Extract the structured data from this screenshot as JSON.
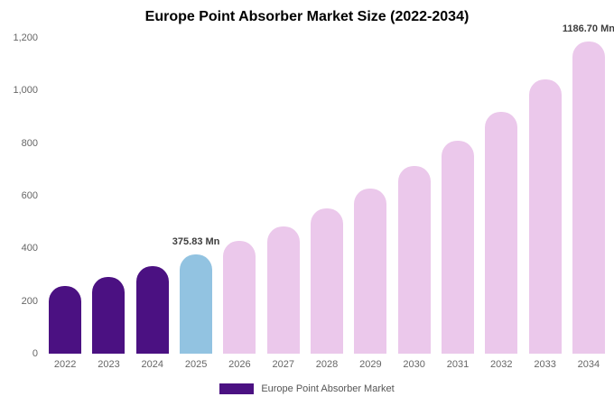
{
  "colors": {
    "historical": "#4b1182",
    "current": "#92c3e1",
    "forecast": "#ebc8eb",
    "legend_swatch": "#4b1182",
    "background": "#ffffff",
    "tick_text": "#666666",
    "annotation_text": "#3d3d3d"
  },
  "chart_data": {
    "type": "bar",
    "title": "Europe Point Absorber Market Size (2022-2034)",
    "xlabel": "",
    "ylabel": "",
    "ylim": [
      0,
      1200
    ],
    "grid": false,
    "legend_position": "bottom",
    "y_ticks": [
      {
        "value": 1200,
        "label": "1,200"
      },
      {
        "value": 1000,
        "label": "1,000"
      },
      {
        "value": 800,
        "label": "800"
      },
      {
        "value": 600,
        "label": "600"
      },
      {
        "value": 400,
        "label": "400"
      },
      {
        "value": 200,
        "label": "200"
      },
      {
        "value": 0,
        "label": "0"
      }
    ],
    "categories": [
      "2022",
      "2023",
      "2024",
      "2025",
      "2026",
      "2027",
      "2028",
      "2029",
      "2030",
      "2031",
      "2032",
      "2033",
      "2034"
    ],
    "series": [
      {
        "name": "Europe Point Absorber Market",
        "values": [
          256,
          291,
          331,
          375.83,
          427,
          485,
          551,
          626,
          712,
          809,
          919,
          1044,
          1186.7
        ]
      }
    ],
    "bar_segments": [
      "historical",
      "historical",
      "historical",
      "current",
      "forecast",
      "forecast",
      "forecast",
      "forecast",
      "forecast",
      "forecast",
      "forecast",
      "forecast",
      "forecast"
    ],
    "annotations": [
      {
        "index": 3,
        "text": "375.83 Mn"
      },
      {
        "index": 12,
        "text": "1186.70 Mn"
      }
    ]
  }
}
